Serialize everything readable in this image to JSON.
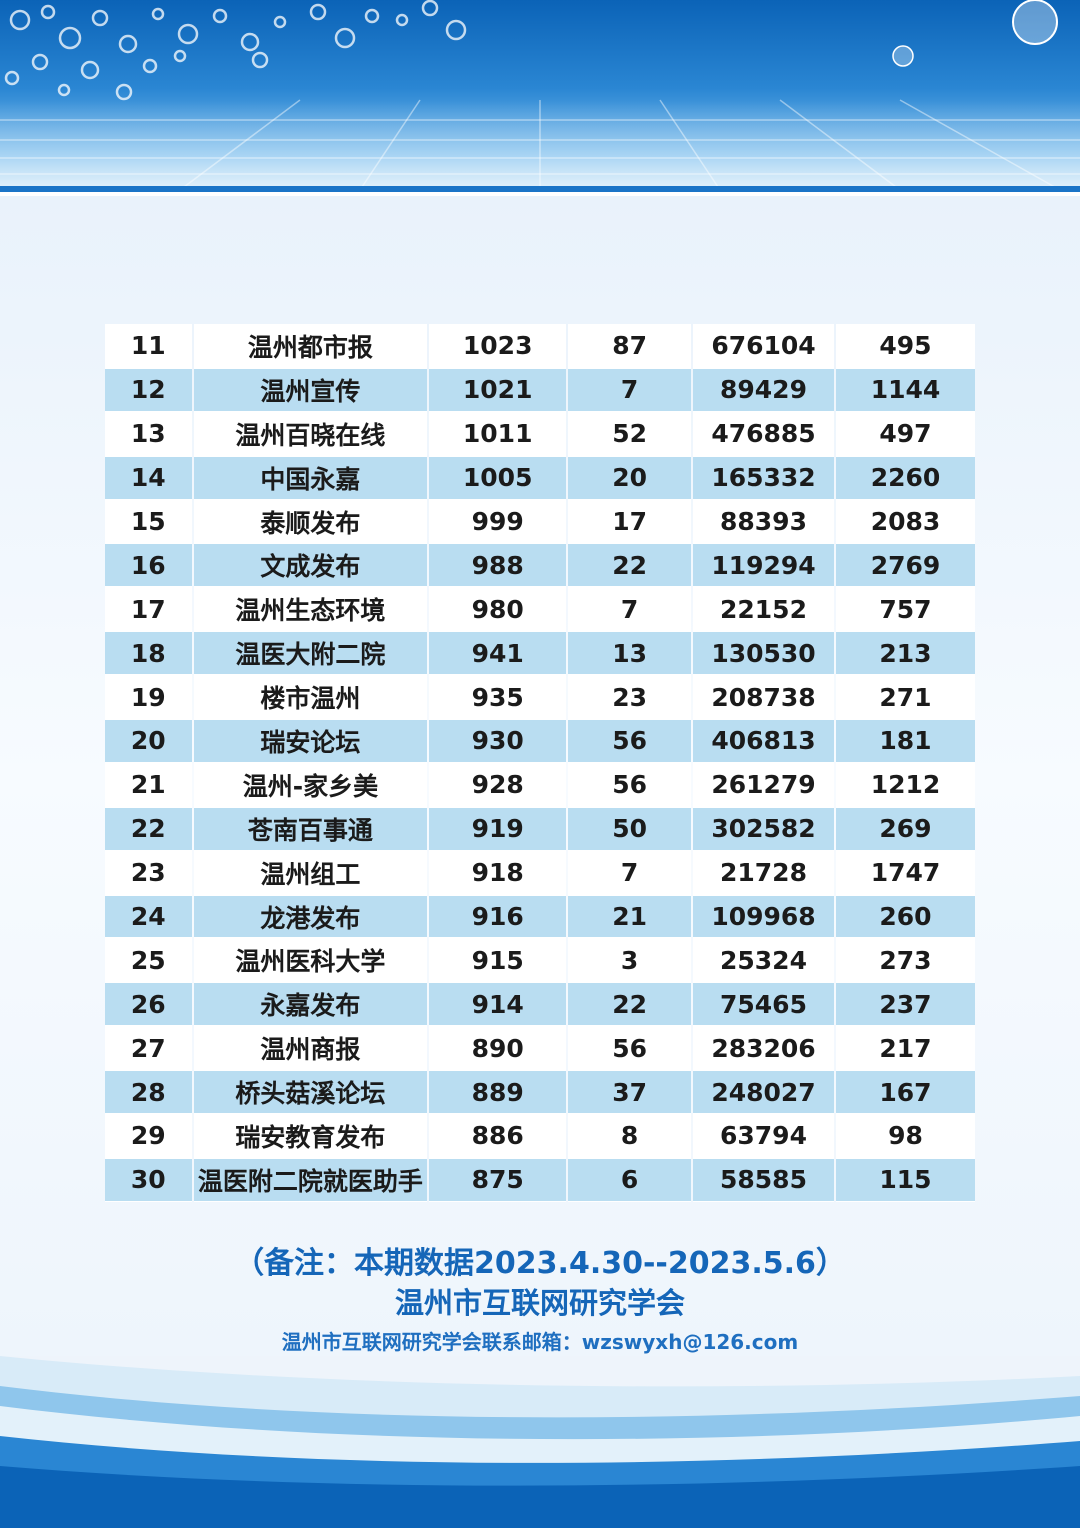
{
  "rows": [
    [
      "11",
      "温州都市报",
      "1023",
      "87",
      "676104",
      "495"
    ],
    [
      "12",
      "温州宣传",
      "1021",
      "7",
      "89429",
      "1144"
    ],
    [
      "13",
      "温州百晓在线",
      "1011",
      "52",
      "476885",
      "497"
    ],
    [
      "14",
      "中国永嘉",
      "1005",
      "20",
      "165332",
      "2260"
    ],
    [
      "15",
      "泰顺发布",
      "999",
      "17",
      "88393",
      "2083"
    ],
    [
      "16",
      "文成发布",
      "988",
      "22",
      "119294",
      "2769"
    ],
    [
      "17",
      "温州生态环境",
      "980",
      "7",
      "22152",
      "757"
    ],
    [
      "18",
      "温医大附二院",
      "941",
      "13",
      "130530",
      "213"
    ],
    [
      "19",
      "楼市温州",
      "935",
      "23",
      "208738",
      "271"
    ],
    [
      "20",
      "瑞安论坛",
      "930",
      "56",
      "406813",
      "181"
    ],
    [
      "21",
      "温州-家乡美",
      "928",
      "56",
      "261279",
      "1212"
    ],
    [
      "22",
      "苍南百事通",
      "919",
      "50",
      "302582",
      "269"
    ],
    [
      "23",
      "温州组工",
      "918",
      "7",
      "21728",
      "1747"
    ],
    [
      "24",
      "龙港发布",
      "916",
      "21",
      "109968",
      "260"
    ],
    [
      "25",
      "温州医科大学",
      "915",
      "3",
      "25324",
      "273"
    ],
    [
      "26",
      "永嘉发布",
      "914",
      "22",
      "75465",
      "237"
    ],
    [
      "27",
      "温州商报",
      "890",
      "56",
      "283206",
      "217"
    ],
    [
      "28",
      "桥头菇溪论坛",
      "889",
      "37",
      "248027",
      "167"
    ],
    [
      "29",
      "瑞安教育发布",
      "886",
      "8",
      "63794",
      "98"
    ],
    [
      "30",
      "温医附二院就医助手",
      "875",
      "6",
      "58585",
      "115"
    ]
  ],
  "footer": {
    "note": "（备注：本期数据2023.4.30--2023.5.6）",
    "organization": "温州市互联网研究学会",
    "contact": "温州市互联网研究学会联系邮箱：wzswyxh@126.com"
  },
  "colors": {
    "row_alt": "#b9ddf1",
    "row": "#ffffff",
    "accent": "#1566b8"
  }
}
